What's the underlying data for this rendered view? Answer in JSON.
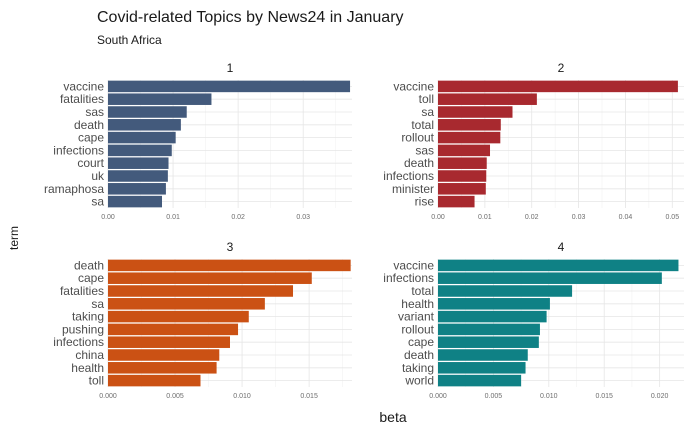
{
  "chart_data": {
    "type": "bar",
    "title": "Covid-related Topics by News24 in January",
    "subtitle": "South Africa",
    "xlabel": "beta",
    "ylabel": "term",
    "grid": true,
    "panels": [
      {
        "label": "1",
        "color": "#435A7C",
        "xlim": [
          0,
          0.0375
        ],
        "ticks": [
          0,
          0.01,
          0.02,
          0.03
        ],
        "tick_labels": [
          "0.00",
          "0.01",
          "0.02",
          "0.03"
        ],
        "terms": [
          "vaccine",
          "fatalities",
          "sas",
          "death",
          "cape",
          "infections",
          "court",
          "uk",
          "ramaphosa",
          "sa"
        ],
        "values": [
          0.0372,
          0.0159,
          0.0121,
          0.0112,
          0.0104,
          0.0098,
          0.0093,
          0.0092,
          0.0089,
          0.0083
        ]
      },
      {
        "label": "2",
        "color": "#A8292F",
        "xlim": [
          0,
          0.0525
        ],
        "ticks": [
          0,
          0.01,
          0.02,
          0.03,
          0.04,
          0.05
        ],
        "tick_labels": [
          "0.00",
          "0.01",
          "0.02",
          "0.03",
          "0.04",
          "0.05"
        ],
        "terms": [
          "vaccine",
          "toll",
          "sa",
          "total",
          "rollout",
          "sas",
          "death",
          "infections",
          "minister",
          "rise"
        ],
        "values": [
          0.0512,
          0.0211,
          0.0159,
          0.0134,
          0.0133,
          0.0111,
          0.0104,
          0.0103,
          0.0102,
          0.0078
        ]
      },
      {
        "label": "3",
        "color": "#CB5114",
        "xlim": [
          0,
          0.0182
        ],
        "ticks": [
          0,
          0.005,
          0.01,
          0.015
        ],
        "tick_labels": [
          "0.000",
          "0.005",
          "0.010",
          "0.015"
        ],
        "terms": [
          "death",
          "cape",
          "fatalities",
          "sa",
          "taking",
          "pushing",
          "infections",
          "china",
          "health",
          "toll"
        ],
        "values": [
          0.0181,
          0.0152,
          0.0138,
          0.0117,
          0.0105,
          0.0097,
          0.0091,
          0.0083,
          0.0081,
          0.0069
        ]
      },
      {
        "label": "4",
        "color": "#0F8185",
        "xlim": [
          0,
          0.0222
        ],
        "ticks": [
          0,
          0.005,
          0.01,
          0.015,
          0.02
        ],
        "tick_labels": [
          "0.000",
          "0.005",
          "0.010",
          "0.015",
          "0.020"
        ],
        "terms": [
          "vaccine",
          "infections",
          "total",
          "health",
          "variant",
          "rollout",
          "cape",
          "death",
          "taking",
          "world"
        ],
        "values": [
          0.0217,
          0.0202,
          0.0121,
          0.0101,
          0.0098,
          0.0092,
          0.0091,
          0.0081,
          0.0079,
          0.0075
        ]
      }
    ]
  }
}
